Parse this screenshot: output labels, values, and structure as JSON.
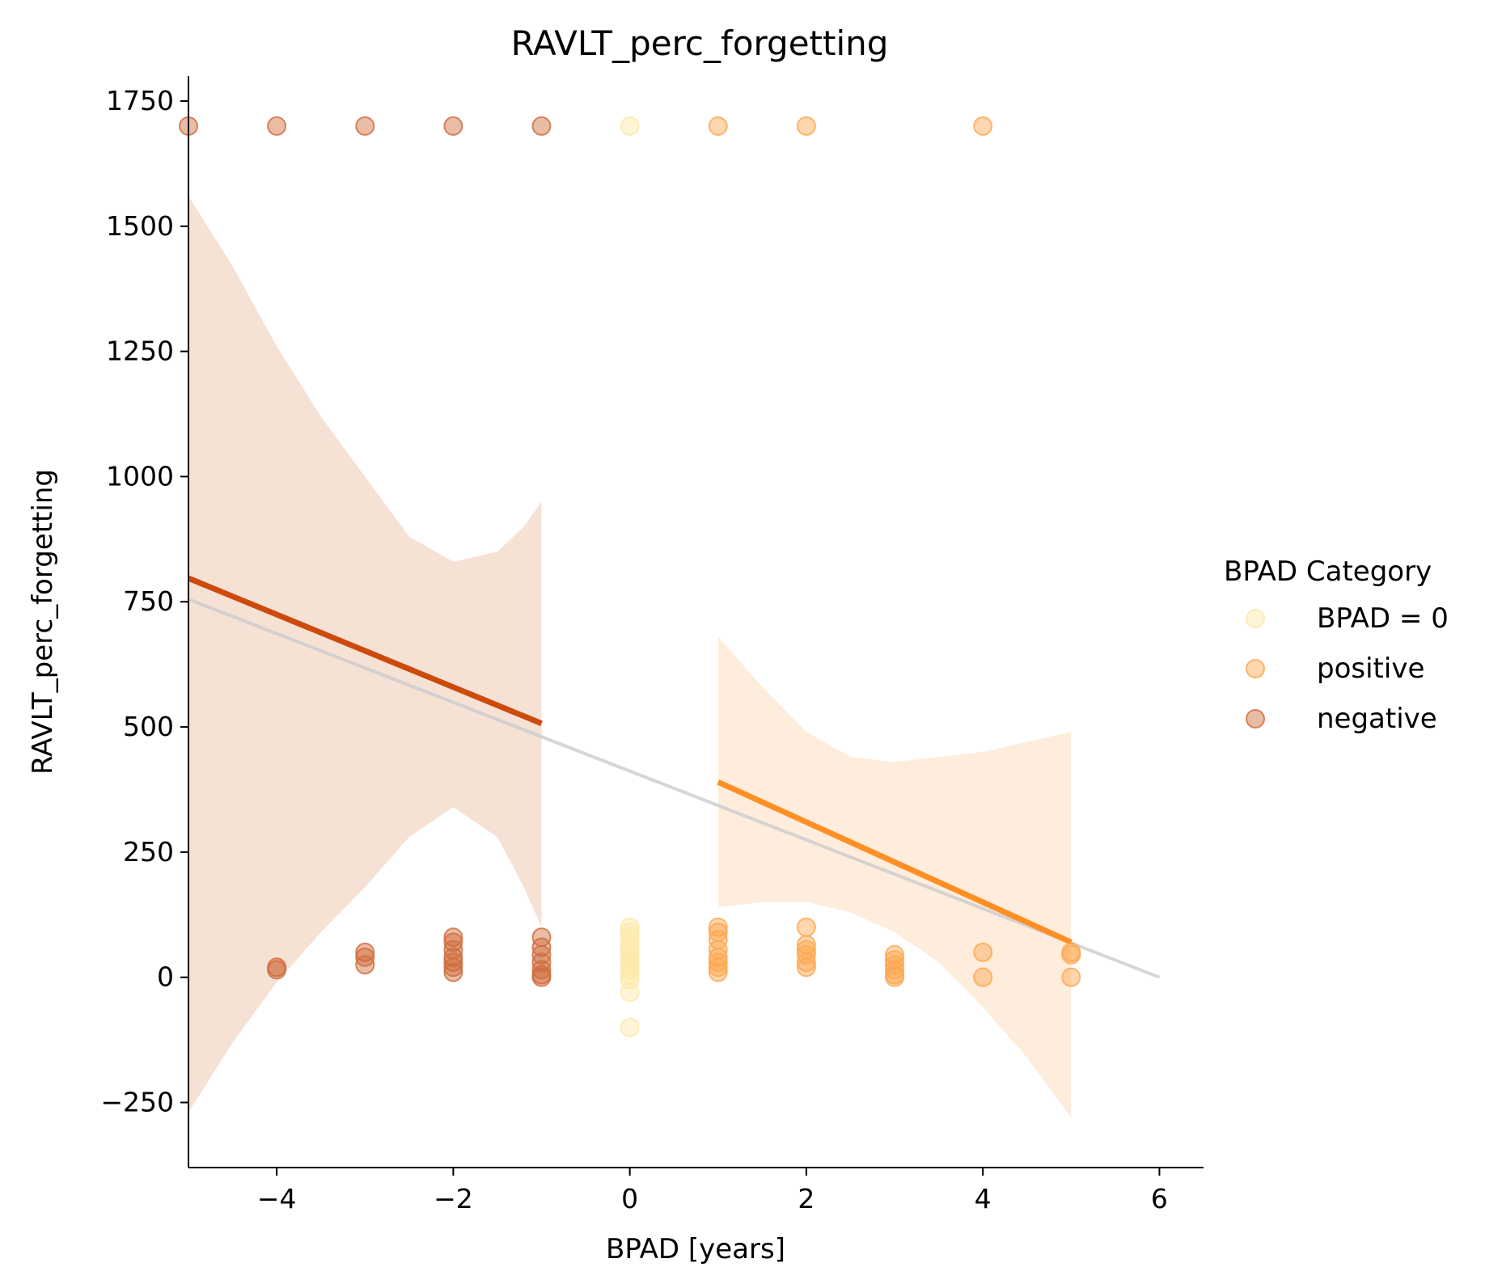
{
  "chart_data": {
    "type": "scatter",
    "title": "RAVLT_perc_forgetting",
    "xlabel": "BPAD [years]",
    "ylabel": "RAVLT_perc_forgetting",
    "xlim": [
      -5,
      6.5
    ],
    "ylim": [
      -380,
      1800
    ],
    "xticks": [
      -4,
      -2,
      0,
      2,
      4,
      6
    ],
    "yticks": [
      -250,
      0,
      250,
      500,
      750,
      1000,
      1250,
      1500,
      1750
    ],
    "x_tick_labels": [
      "−4",
      "−2",
      "0",
      "2",
      "4",
      "6"
    ],
    "y_tick_labels": [
      "−250",
      "0",
      "250",
      "500",
      "750",
      "1000",
      "1250",
      "1500",
      "1750"
    ],
    "grid": false,
    "legend": {
      "title": "BPAD Category",
      "placement": "right",
      "entries": [
        "BPAD = 0",
        "positive",
        "negative"
      ]
    },
    "colors": {
      "zero": "#fde9a6",
      "positive": "#fca64e",
      "negative": "#cf6a3a",
      "negative_line": "#cc4a0c",
      "positive_line": "#fd8f25",
      "overall_line": "#cccccc",
      "negative_band": "#f0cdb9",
      "positive_band": "#fde0c4"
    },
    "series": [
      {
        "name": "BPAD = 0",
        "points": [
          [
            0,
            1700
          ],
          [
            0,
            100
          ],
          [
            0,
            90
          ],
          [
            0,
            80
          ],
          [
            0,
            65
          ],
          [
            0,
            55
          ],
          [
            0,
            45
          ],
          [
            0,
            35
          ],
          [
            0,
            25
          ],
          [
            0,
            15
          ],
          [
            0,
            5
          ],
          [
            0,
            -5
          ],
          [
            0,
            -30
          ],
          [
            0,
            -100
          ]
        ]
      },
      {
        "name": "positive",
        "points": [
          [
            1,
            1700
          ],
          [
            2,
            1700
          ],
          [
            4,
            1700
          ],
          [
            1,
            100
          ],
          [
            1,
            90
          ],
          [
            1,
            75
          ],
          [
            1,
            55
          ],
          [
            1,
            40
          ],
          [
            1,
            30
          ],
          [
            1,
            20
          ],
          [
            1,
            10
          ],
          [
            2,
            100
          ],
          [
            2,
            65
          ],
          [
            2,
            55
          ],
          [
            2,
            45
          ],
          [
            2,
            30
          ],
          [
            2,
            20
          ],
          [
            3,
            45
          ],
          [
            3,
            35
          ],
          [
            3,
            25
          ],
          [
            3,
            15
          ],
          [
            3,
            5
          ],
          [
            3,
            0
          ],
          [
            4,
            50
          ],
          [
            4,
            0
          ],
          [
            5,
            50
          ],
          [
            5,
            45
          ],
          [
            5,
            0
          ]
        ]
      },
      {
        "name": "negative",
        "points": [
          [
            -5,
            1700
          ],
          [
            -4,
            1700
          ],
          [
            -3,
            1700
          ],
          [
            -2,
            1700
          ],
          [
            -1,
            1700
          ],
          [
            -4,
            20
          ],
          [
            -4,
            15
          ],
          [
            -3,
            50
          ],
          [
            -3,
            40
          ],
          [
            -3,
            25
          ],
          [
            -2,
            80
          ],
          [
            -2,
            70
          ],
          [
            -2,
            55
          ],
          [
            -2,
            40
          ],
          [
            -2,
            30
          ],
          [
            -2,
            20
          ],
          [
            -2,
            10
          ],
          [
            -1,
            80
          ],
          [
            -1,
            60
          ],
          [
            -1,
            45
          ],
          [
            -1,
            30
          ],
          [
            -1,
            15
          ],
          [
            -1,
            5
          ],
          [
            -1,
            0
          ]
        ]
      }
    ],
    "regression": {
      "negative": {
        "x": [
          -5,
          -1
        ],
        "y": [
          797,
          507
        ]
      },
      "positive": {
        "x": [
          1,
          5
        ],
        "y": [
          390,
          70
        ]
      },
      "overall": {
        "x": [
          -5,
          6
        ],
        "y": [
          755,
          0
        ]
      }
    },
    "confidence_bands": {
      "negative": {
        "x": [
          -5,
          -4.5,
          -4,
          -3.5,
          -3,
          -2.5,
          -2,
          -1.5,
          -1.2,
          -1
        ],
        "upper": [
          1560,
          1420,
          1260,
          1120,
          1000,
          880,
          830,
          850,
          900,
          950
        ],
        "lower": [
          -270,
          -130,
          -10,
          90,
          180,
          280,
          340,
          280,
          180,
          100
        ]
      },
      "positive": {
        "x": [
          1,
          1.5,
          2,
          2.5,
          3,
          3.5,
          4,
          4.5,
          5
        ],
        "upper": [
          680,
          580,
          490,
          440,
          430,
          440,
          450,
          470,
          490
        ],
        "lower": [
          140,
          150,
          150,
          130,
          90,
          30,
          -60,
          -160,
          -280
        ]
      }
    }
  }
}
